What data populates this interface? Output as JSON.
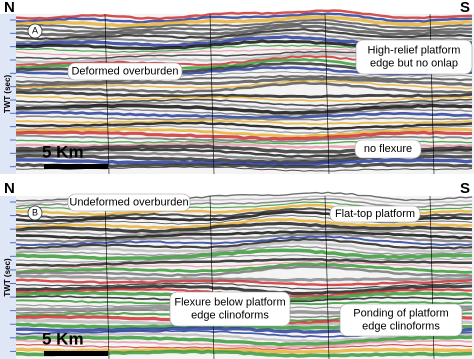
{
  "panels": [
    {
      "label": "A",
      "north": "N",
      "south": "S",
      "axis_label": "TWT (sec)",
      "scale": "5 Km",
      "annotations": [
        {
          "lines": [
            "Deformed overburden"
          ]
        },
        {
          "lines": [
            "High-relief platform",
            "edge but no onlap"
          ]
        },
        {
          "lines": [
            "no flexure"
          ]
        }
      ]
    },
    {
      "label": "B",
      "north": "N",
      "south": "S",
      "axis_label": "TWT (sec)",
      "scale": "5 Km",
      "annotations": [
        {
          "lines": [
            "Undeformed overburden"
          ]
        },
        {
          "lines": [
            "Flat-top platform"
          ]
        },
        {
          "lines": [
            "Flexure below platform",
            "edge clinoforms"
          ]
        },
        {
          "lines": [
            "Ponding of platform",
            "edge clinoforms"
          ]
        }
      ]
    }
  ]
}
